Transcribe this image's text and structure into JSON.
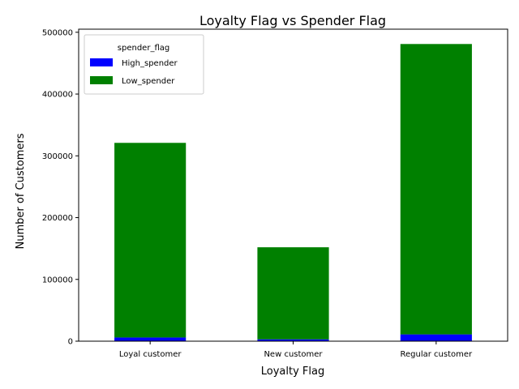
{
  "chart_data": {
    "type": "bar",
    "stacked": true,
    "title": "Loyalty Flag vs Spender Flag",
    "xlabel": "Loyalty Flag",
    "ylabel": "Number of Customers",
    "categories": [
      "Loyal customer",
      "New customer",
      "Regular customer"
    ],
    "series": [
      {
        "name": "High_spender",
        "color": "#0000ff",
        "values": [
          6000,
          3000,
          11000
        ]
      },
      {
        "name": "Low_spender",
        "color": "#008000",
        "values": [
          315000,
          149000,
          470000
        ]
      }
    ],
    "ylim": [
      0,
      505000
    ],
    "yticks": [
      0,
      100000,
      200000,
      300000,
      400000,
      500000
    ],
    "ytick_labels": [
      "0",
      "100000",
      "200000",
      "300000",
      "400000",
      "500000"
    ],
    "legend": {
      "title": "spender_flag",
      "position": "top-left"
    },
    "grid": false
  }
}
